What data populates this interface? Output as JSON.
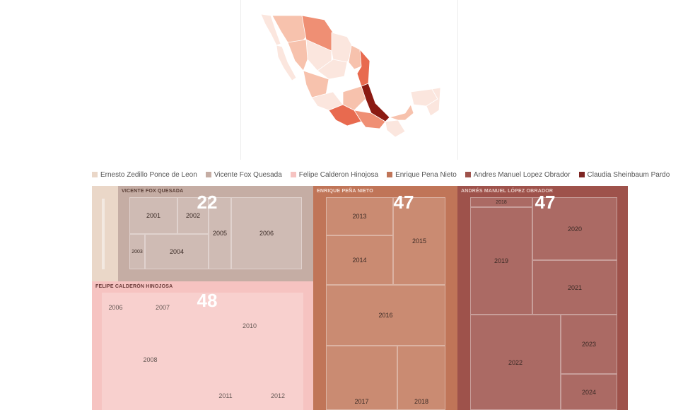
{
  "map": {
    "colors": {
      "lightest": "#fbe6de",
      "light": "#f7c2ad",
      "mid": "#ef8f74",
      "strong": "#e86a4f",
      "deepest": "#8b1a12"
    }
  },
  "legend": [
    {
      "label": "Ernesto Zedillo Ponce de Leon",
      "color": "#ead7c8"
    },
    {
      "label": "Vicente Fox Quesada",
      "color": "#c5ada4"
    },
    {
      "label": "Felipe Calderon Hinojosa",
      "color": "#f6c3c1"
    },
    {
      "label": "Enrique Pena Nieto",
      "color": "#c07558"
    },
    {
      "label": "Andres Manuel Lopez Obrador",
      "color": "#9e524b"
    },
    {
      "label": "Claudia Sheinbaum Pardo",
      "color": "#7d2522"
    }
  ],
  "chart_data": {
    "type": "treemap",
    "groups": [
      {
        "name": "",
        "president": "Ernesto Zedillo Ponce de Leon",
        "color": "#ead7c8"
      },
      {
        "name": "VICENTE FOX QUESADA",
        "value": 22,
        "color": "#c5ada4",
        "years": [
          "2001",
          "2002",
          "2003",
          "2004",
          "2005",
          "2006"
        ]
      },
      {
        "name": "FELIPE CALDERÓN HINOJOSA",
        "value": 48,
        "color": "#f6c3c1",
        "years": [
          "2006",
          "2007",
          "2008",
          "2010",
          "2011",
          "2012"
        ]
      },
      {
        "name": "ENRIQUE PEÑA NIETO",
        "value": 47,
        "color": "#c07558",
        "years": [
          "2013",
          "2014",
          "2015",
          "2016",
          "2017",
          "2018"
        ]
      },
      {
        "name": "ANDRÉS MANUEL LÓPEZ OBRADOR",
        "value": 47,
        "color": "#9e524b",
        "years": [
          "2018",
          "2019",
          "2020",
          "2021",
          "2022",
          "2023",
          "2024"
        ]
      },
      {
        "name": "",
        "president": "Claudia Sheinbaum Pardo",
        "color": "#7d2522"
      }
    ]
  }
}
